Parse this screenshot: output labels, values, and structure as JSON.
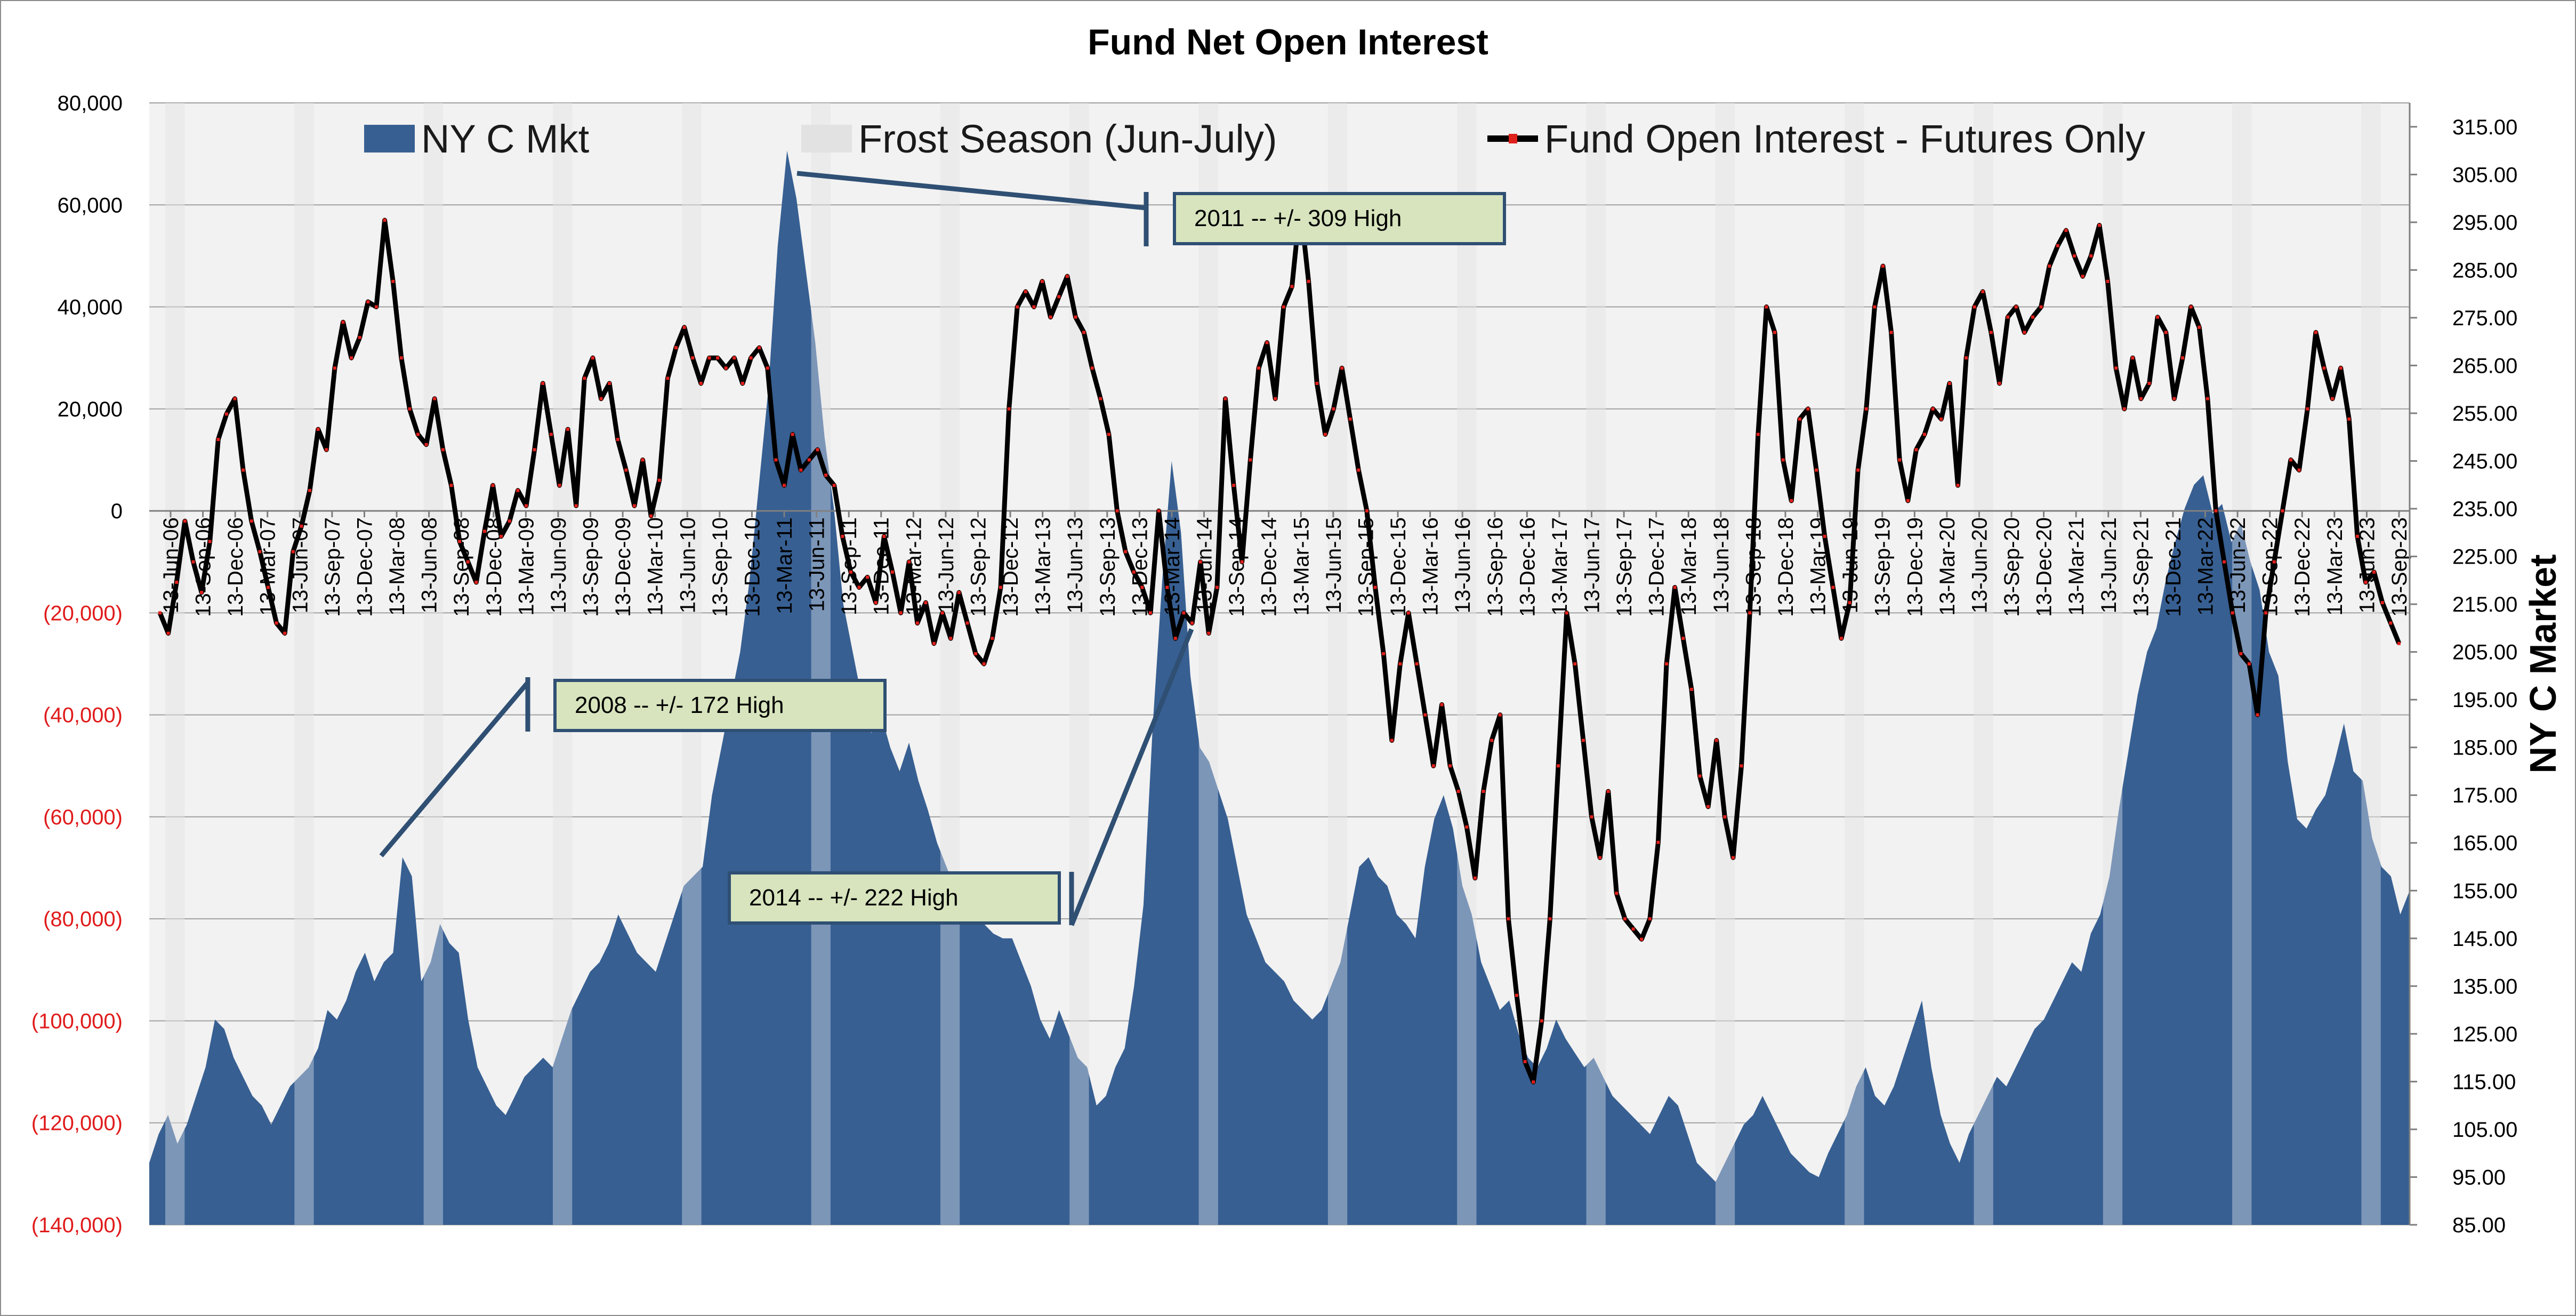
{
  "chart_data": {
    "type": "line",
    "title": "Fund Net Open Interest",
    "y_left": {
      "range": [
        -140000,
        80000
      ],
      "tick_labels": [
        "80,000",
        "60,000",
        "40,000",
        "20,000",
        "0",
        "(20,000)",
        "(40,000)",
        "(60,000)",
        "(80,000)",
        "(100,000)",
        "(120,000)",
        "(140,000)"
      ],
      "tick_values": [
        80000,
        60000,
        40000,
        20000,
        0,
        -20000,
        -40000,
        -60000,
        -80000,
        -100000,
        -120000,
        -140000
      ],
      "negative_color": "#e01b1b",
      "positive_color": "#000000"
    },
    "y_right": {
      "label": "NY C Market",
      "range": [
        85,
        320
      ],
      "tick_labels": [
        "315.00",
        "305.00",
        "295.00",
        "285.00",
        "275.00",
        "265.00",
        "255.00",
        "245.00",
        "235.00",
        "225.00",
        "215.00",
        "205.00",
        "195.00",
        "185.00",
        "175.00",
        "165.00",
        "155.00",
        "145.00",
        "135.00",
        "125.00",
        "115.00",
        "105.00",
        "95.00",
        "85.00"
      ],
      "tick_values": [
        315,
        305,
        295,
        285,
        275,
        265,
        255,
        245,
        235,
        225,
        215,
        205,
        195,
        185,
        175,
        165,
        155,
        145,
        135,
        125,
        115,
        105,
        95,
        85
      ]
    },
    "x_tick_labels": [
      "13-Jun-06",
      "13-Sep-06",
      "13-Dec-06",
      "13-Mar-07",
      "13-Jun-07",
      "13-Sep-07",
      "13-Dec-07",
      "13-Mar-08",
      "13-Jun-08",
      "13-Sep-08",
      "13-Dec-08",
      "13-Mar-09",
      "13-Jun-09",
      "13-Sep-09",
      "13-Dec-09",
      "13-Mar-10",
      "13-Jun-10",
      "13-Sep-10",
      "13-Dec-10",
      "13-Mar-11",
      "13-Jun-11",
      "13-Sep-11",
      "13-Dec-11",
      "13-Mar-12",
      "13-Jun-12",
      "13-Sep-12",
      "13-Dec-12",
      "13-Mar-13",
      "13-Jun-13",
      "13-Sep-13",
      "13-Dec-13",
      "13-Mar-14",
      "13-Jun-14",
      "13-Sep-14",
      "13-Dec-14",
      "13-Mar-15",
      "13-Jun-15",
      "13-Sep-15",
      "13-Dec-15",
      "13-Mar-16",
      "13-Jun-16",
      "13-Sep-16",
      "13-Dec-16",
      "13-Mar-17",
      "13-Jun-17",
      "13-Sep-17",
      "13-Dec-17",
      "13-Mar-18",
      "13-Jun-18",
      "13-Sep-18",
      "13-Dec-18",
      "13-Mar-19",
      "13-Jun-19",
      "13-Sep-19",
      "13-Dec-19",
      "13-Mar-20",
      "13-Jun-20",
      "13-Sep-20",
      "13-Dec-20",
      "13-Mar-21",
      "13-Jun-21",
      "13-Sep-21",
      "13-Dec-21",
      "13-Mar-22",
      "13-Jun-22",
      "13-Sep-22",
      "13-Dec-22",
      "13-Mar-23",
      "13-Jun-23",
      "13-Sep-23"
    ],
    "grid": true,
    "legend": {
      "placement": "top",
      "entries": [
        "NY C Mkt",
        "Frost Season (Jun-July)",
        "Fund Open Interest - Futures Only"
      ]
    },
    "series": [
      {
        "name": "Fund Open Interest - Futures Only",
        "type": "line",
        "axis": "left",
        "color": "#000000",
        "marker_color": "#e0201b",
        "values": [
          -20000,
          -24000,
          -14000,
          -2000,
          -10000,
          -16000,
          -6000,
          14000,
          19000,
          22000,
          8000,
          -2000,
          -8000,
          -15000,
          -22000,
          -24000,
          -8000,
          -3000,
          4000,
          16000,
          12000,
          28000,
          37000,
          30000,
          34000,
          41000,
          40000,
          57000,
          45000,
          30000,
          20000,
          15000,
          13000,
          22000,
          12000,
          5000,
          -6000,
          -10000,
          -14000,
          -4000,
          5000,
          -5000,
          -2000,
          4000,
          1000,
          12000,
          25000,
          15000,
          5000,
          16000,
          1000,
          26000,
          30000,
          22000,
          25000,
          14000,
          8000,
          1000,
          10000,
          -1000,
          6000,
          26000,
          32000,
          36000,
          30000,
          25000,
          30000,
          30000,
          28000,
          30000,
          25000,
          30000,
          32000,
          28000,
          10000,
          5000,
          15000,
          8000,
          10000,
          12000,
          7000,
          5000,
          -5000,
          -12000,
          -15000,
          -13000,
          -18000,
          -5000,
          -12000,
          -20000,
          -10000,
          -22000,
          -18000,
          -26000,
          -20000,
          -25000,
          -16000,
          -22000,
          -28000,
          -30000,
          -25000,
          -15000,
          20000,
          40000,
          43000,
          40000,
          45000,
          38000,
          42000,
          46000,
          38000,
          35000,
          28000,
          22000,
          15000,
          0,
          -8000,
          -12000,
          -15000,
          -20000,
          0,
          -15000,
          -25000,
          -20000,
          -22000,
          -10000,
          -24000,
          -15000,
          22000,
          5000,
          -10000,
          10000,
          28000,
          33000,
          22000,
          40000,
          44000,
          60000,
          45000,
          25000,
          15000,
          20000,
          28000,
          18000,
          8000,
          0,
          -15000,
          -28000,
          -45000,
          -30000,
          -20000,
          -30000,
          -40000,
          -50000,
          -38000,
          -50000,
          -55000,
          -62000,
          -72000,
          -55000,
          -45000,
          -40000,
          -80000,
          -95000,
          -108000,
          -112000,
          -100000,
          -80000,
          -50000,
          -20000,
          -30000,
          -45000,
          -60000,
          -68000,
          -55000,
          -75000,
          -80000,
          -82000,
          -84000,
          -80000,
          -65000,
          -30000,
          -15000,
          -25000,
          -35000,
          -52000,
          -58000,
          -45000,
          -60000,
          -68000,
          -50000,
          -20000,
          15000,
          40000,
          35000,
          10000,
          2000,
          18000,
          20000,
          8000,
          -5000,
          -15000,
          -25000,
          -18000,
          8000,
          20000,
          40000,
          48000,
          35000,
          10000,
          2000,
          12000,
          15000,
          20000,
          18000,
          25000,
          5000,
          30000,
          40000,
          43000,
          35000,
          25000,
          38000,
          40000,
          35000,
          38000,
          40000,
          48000,
          52000,
          55000,
          50000,
          46000,
          50000,
          56000,
          45000,
          28000,
          20000,
          30000,
          22000,
          25000,
          38000,
          35000,
          22000,
          30000,
          40000,
          36000,
          22000,
          0,
          -10000,
          -20000,
          -28000,
          -30000,
          -40000,
          -20000,
          -10000,
          0,
          10000,
          8000,
          20000,
          35000,
          28000,
          22000,
          28000,
          18000,
          -5000,
          -14000,
          -12000,
          -18000,
          -22000,
          -26000
        ]
      },
      {
        "name": "NY C Mkt",
        "type": "area",
        "axis": "right",
        "color": "#375f92",
        "values": [
          98,
          104,
          108,
          102,
          106,
          112,
          118,
          128,
          126,
          120,
          116,
          112,
          110,
          106,
          110,
          114,
          116,
          118,
          122,
          130,
          128,
          132,
          138,
          142,
          136,
          140,
          142,
          162,
          158,
          136,
          140,
          148,
          144,
          142,
          128,
          118,
          114,
          110,
          108,
          112,
          116,
          118,
          120,
          118,
          124,
          130,
          134,
          138,
          140,
          144,
          150,
          146,
          142,
          140,
          138,
          144,
          150,
          156,
          158,
          160,
          175,
          185,
          195,
          205,
          220,
          240,
          260,
          290,
          310,
          300,
          285,
          270,
          250,
          235,
          215,
          205,
          195,
          188,
          192,
          185,
          180,
          186,
          178,
          172,
          165,
          160,
          155,
          148,
          150,
          148,
          146,
          145,
          145,
          140,
          135,
          128,
          124,
          130,
          125,
          120,
          118,
          110,
          112,
          118,
          122,
          135,
          152,
          190,
          220,
          245,
          230,
          200,
          185,
          182,
          176,
          170,
          160,
          150,
          145,
          140,
          138,
          136,
          132,
          130,
          128,
          130,
          135,
          140,
          150,
          160,
          162,
          158,
          156,
          150,
          148,
          145,
          160,
          170,
          175,
          168,
          156,
          150,
          140,
          135,
          130,
          132,
          125,
          120,
          118,
          122,
          128,
          124,
          121,
          118,
          120,
          116,
          112,
          110,
          108,
          106,
          104,
          108,
          112,
          110,
          104,
          98,
          96,
          94,
          98,
          102,
          106,
          108,
          112,
          108,
          104,
          100,
          98,
          96,
          95,
          100,
          104,
          108,
          114,
          118,
          112,
          110,
          114,
          120,
          126,
          132,
          118,
          108,
          102,
          98,
          104,
          108,
          112,
          116,
          114,
          118,
          122,
          126,
          128,
          132,
          136,
          140,
          138,
          146,
          150,
          158,
          172,
          184,
          196,
          205,
          210,
          220,
          228,
          235,
          240,
          242,
          234,
          236,
          228,
          232,
          224,
          218,
          205,
          200,
          182,
          170,
          168,
          172,
          175,
          182,
          190,
          180,
          178,
          166,
          160,
          158,
          150,
          155
        ]
      }
    ],
    "frost_season_bands": [
      "Jun-July"
    ],
    "annotations": [
      {
        "text": "2008 -- +/- 172 High"
      },
      {
        "text": "2011 -- +/- 309 High"
      },
      {
        "text": "2014 -- +/- 222 High"
      }
    ]
  },
  "colors": {
    "plot_background": "#f2f2f2",
    "frost_band": "#e0e0e0",
    "area_fill": "#375f92",
    "area_in_frost": "#8ea2bd",
    "line": "#000000",
    "marker": "#e0201b",
    "callout_fill": "#d7e4bd",
    "callout_border": "#2f4f73",
    "grid": "#a0a0a0"
  }
}
